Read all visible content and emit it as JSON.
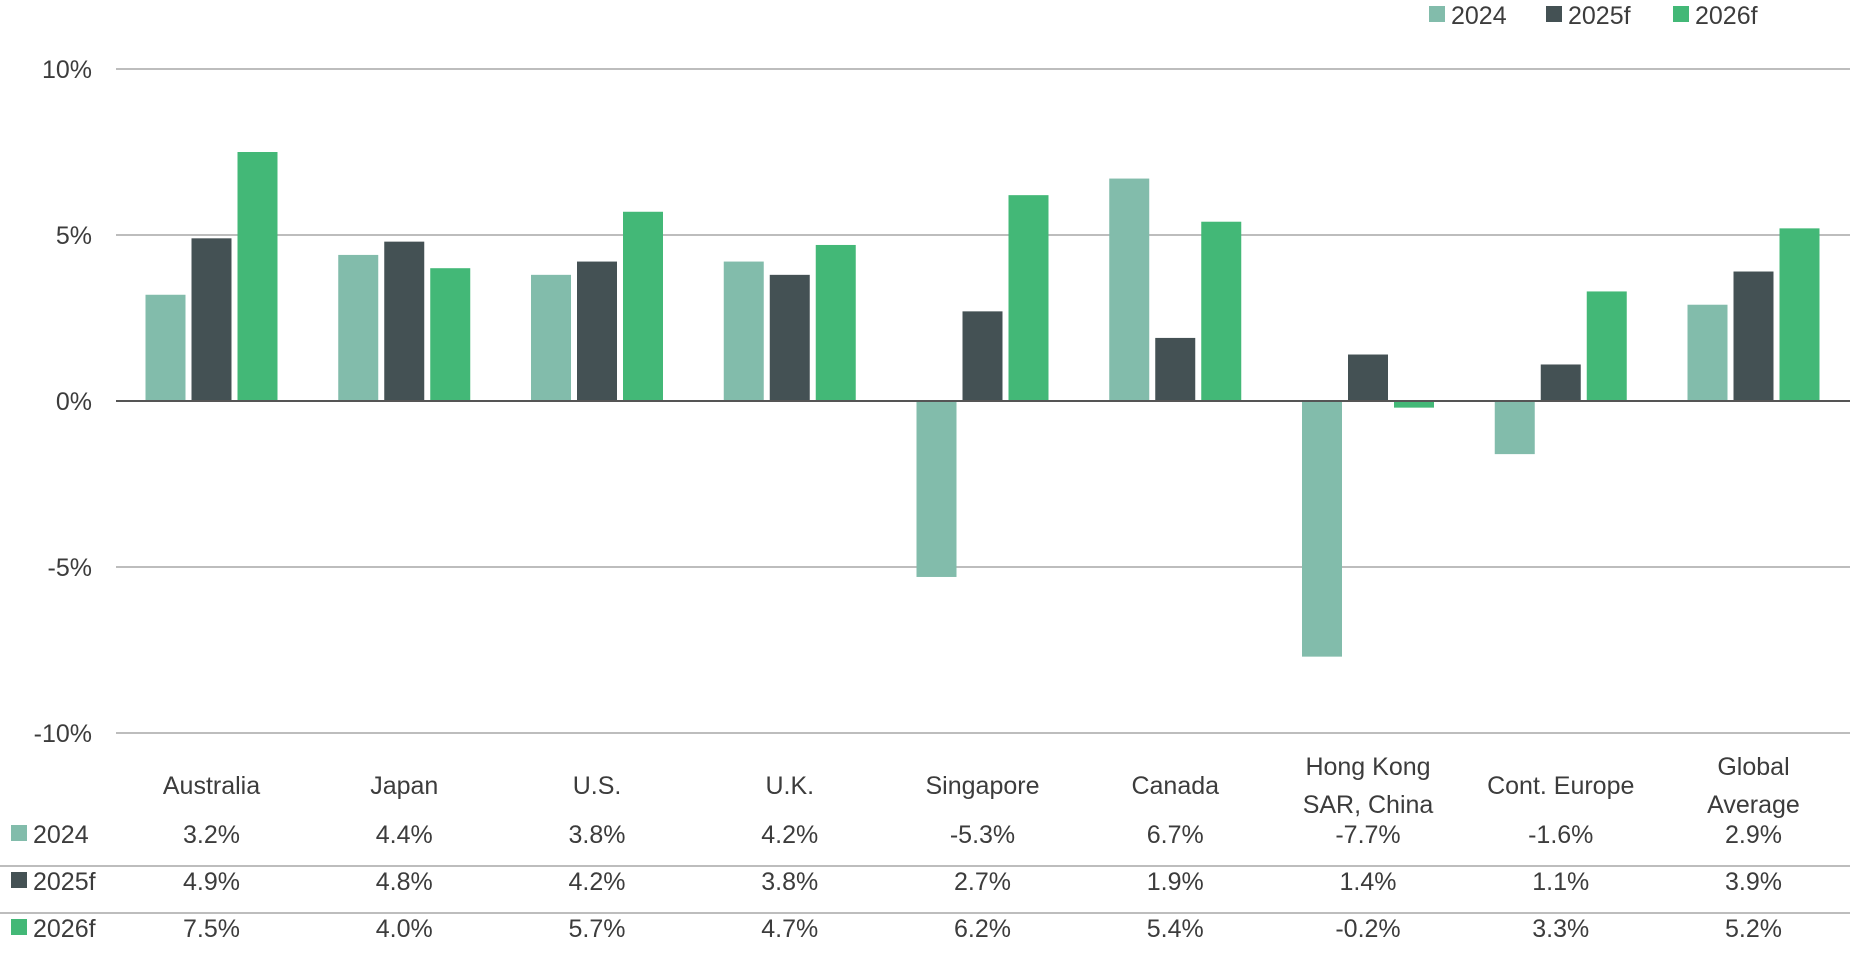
{
  "chart_data": {
    "type": "bar",
    "title": "",
    "xlabel": "",
    "ylabel": "",
    "ylim": [
      -10,
      10
    ],
    "yticks": [
      10,
      5,
      0,
      -5,
      -10
    ],
    "ytick_labels": [
      "10%",
      "5%",
      "0%",
      "-5%",
      "-10%"
    ],
    "grid": true,
    "legend_position": "top-right",
    "categories": [
      "Australia",
      "Japan",
      "U.S.",
      "U.K.",
      "Singapore",
      "Canada",
      "Hong Kong SAR, China",
      "Cont. Europe",
      "Global Average"
    ],
    "category_lines": [
      [
        "Australia"
      ],
      [
        "Japan"
      ],
      [
        "U.S."
      ],
      [
        "U.K."
      ],
      [
        "Singapore"
      ],
      [
        "Canada"
      ],
      [
        "Hong Kong",
        "SAR, China"
      ],
      [
        "Cont. Europe"
      ],
      [
        "Global",
        "Average"
      ]
    ],
    "series": [
      {
        "name": "2024",
        "color": "#82bcab",
        "values": [
          3.2,
          4.4,
          3.8,
          4.2,
          -5.3,
          6.7,
          -7.7,
          -1.6,
          2.9
        ],
        "labels": [
          "3.2%",
          "4.4%",
          "3.8%",
          "4.2%",
          "-5.3%",
          "6.7%",
          "-7.7%",
          "-1.6%",
          "2.9%"
        ]
      },
      {
        "name": "2025f",
        "color": "#445154",
        "values": [
          4.9,
          4.8,
          4.2,
          3.8,
          2.7,
          1.9,
          1.4,
          1.1,
          3.9
        ],
        "labels": [
          "4.9%",
          "4.8%",
          "4.2%",
          "3.8%",
          "2.7%",
          "1.9%",
          "1.4%",
          "1.1%",
          "3.9%"
        ]
      },
      {
        "name": "2026f",
        "color": "#43b877",
        "values": [
          7.5,
          4.0,
          5.7,
          4.7,
          6.2,
          5.4,
          -0.2,
          3.3,
          5.2
        ],
        "labels": [
          "7.5%",
          "4.0%",
          "5.7%",
          "4.7%",
          "6.2%",
          "5.4%",
          "-0.2%",
          "3.3%",
          "5.2%"
        ]
      }
    ]
  }
}
